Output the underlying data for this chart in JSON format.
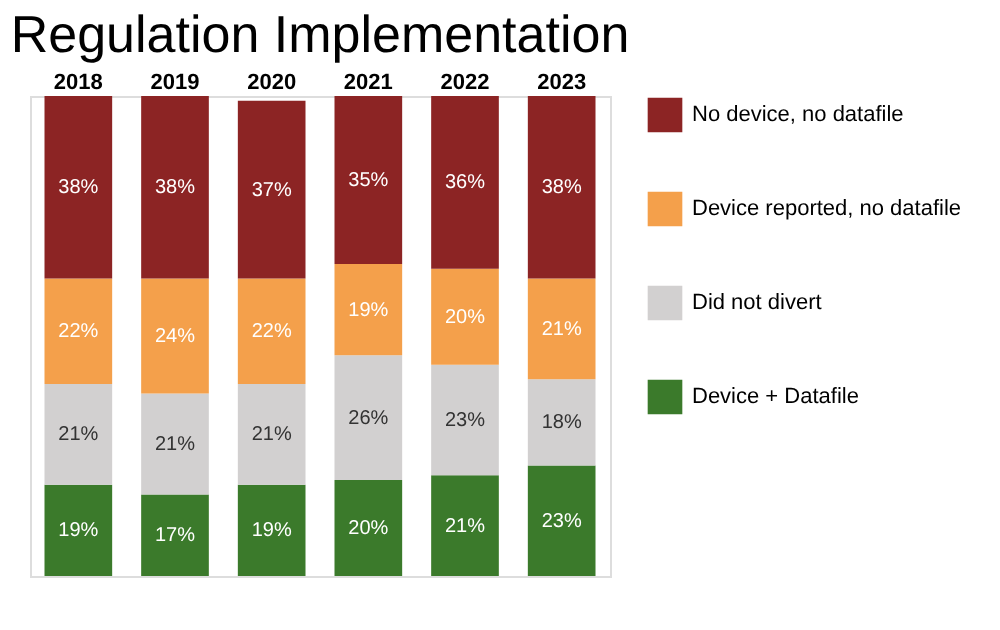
{
  "chart_data": {
    "type": "bar",
    "title": "Regulation Implementation",
    "stacked": true,
    "legend": "right",
    "categories": [
      "2018",
      "2019",
      "2020",
      "2021",
      "2022",
      "2023"
    ],
    "series": [
      {
        "name": "Device + Datafile",
        "color": "#3b7a2b",
        "values": [
          19,
          17,
          19,
          20,
          21,
          23
        ],
        "value_labels": [
          "19%",
          "17%",
          "19%",
          "20%",
          "21%",
          "23%"
        ]
      },
      {
        "name": "Did not divert",
        "color": "#d2d0d0",
        "values": [
          21,
          21,
          21,
          26,
          23,
          18
        ],
        "value_labels": [
          "21%",
          "21%",
          "21%",
          "26%",
          "23%",
          "18%"
        ]
      },
      {
        "name": "Device reported, no datafile",
        "color": "#f4a04b",
        "values": [
          22,
          24,
          22,
          19,
          20,
          21
        ],
        "value_labels": [
          "22%",
          "24%",
          "22%",
          "19%",
          "20%",
          "21%"
        ]
      },
      {
        "name": "No device, no datafile",
        "color": "#8c2424",
        "values": [
          38,
          38,
          37,
          35,
          36,
          38
        ],
        "value_labels": [
          "38%",
          "38%",
          "37%",
          "35%",
          "36%",
          "38%"
        ]
      }
    ]
  }
}
